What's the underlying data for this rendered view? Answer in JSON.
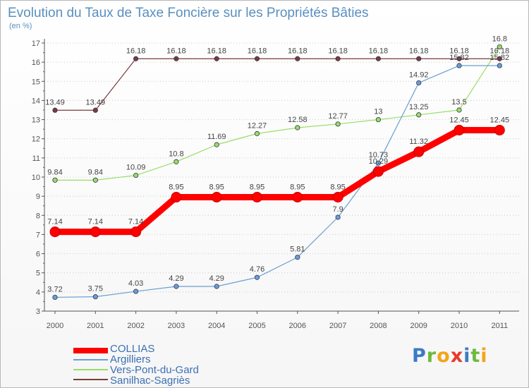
{
  "chart_data": {
    "type": "line",
    "title": "Evolution du Taux de Taxe Foncière sur les Propriétés Bâties",
    "subtitle": "(en %)",
    "x": [
      "2000",
      "2001",
      "2002",
      "2003",
      "2004",
      "2005",
      "2006",
      "2007",
      "2008",
      "2009",
      "2010",
      "2011"
    ],
    "ylim": [
      3,
      17
    ],
    "yticks": [
      3,
      4,
      5,
      6,
      7,
      8,
      9,
      10,
      11,
      12,
      13,
      14,
      15,
      16,
      17
    ],
    "grid": "horizontal dotted",
    "series": [
      {
        "name": "COLLIAS",
        "color": "#ff0000",
        "values": [
          7.14,
          7.14,
          7.14,
          8.95,
          8.95,
          8.95,
          8.95,
          8.95,
          10.29,
          11.32,
          12.45,
          12.45
        ],
        "labels": [
          "7.14",
          "7.14",
          "7.14",
          "8.95",
          "8.95",
          "8.95",
          "8.95",
          "8.95",
          "10.29",
          "11.32",
          "12.45",
          "12.45"
        ]
      },
      {
        "name": "Argilliers",
        "color": "#6a9fd0",
        "values": [
          3.72,
          3.75,
          4.03,
          4.29,
          4.29,
          4.76,
          5.81,
          7.9,
          10.73,
          14.92,
          15.82,
          15.82
        ],
        "labels": [
          "3.72",
          "3.75",
          "4.03",
          "4.29",
          "4.29",
          "4.76",
          "5.81",
          "7.9",
          "10.73",
          "14.92",
          "15.82",
          "15.82"
        ]
      },
      {
        "name": "Vers-Pont-du-Gard",
        "color": "#99dd66",
        "values": [
          9.84,
          9.84,
          10.09,
          10.8,
          11.69,
          12.27,
          12.58,
          12.77,
          13,
          13.25,
          13.5,
          16.8
        ],
        "labels": [
          "9.84",
          "9.84",
          "10.09",
          "10.8",
          "11.69",
          "12.27",
          "12.58",
          "12.77",
          "13",
          "13.25",
          "13.5",
          "16.8"
        ]
      },
      {
        "name": "Sanilhac-Sagriès",
        "color": "#7a3b3b",
        "values": [
          13.49,
          13.49,
          16.18,
          16.18,
          16.18,
          16.18,
          16.18,
          16.18,
          16.18,
          16.18,
          16.18,
          16.18
        ],
        "labels": [
          "13.49",
          "13.49",
          "16.18",
          "16.18",
          "16.18",
          "16.18",
          "16.18",
          "16.18",
          "16.18",
          "16.18",
          "16.18",
          "16.18"
        ]
      }
    ]
  },
  "logo": {
    "letters": [
      "P",
      "r",
      "o",
      "x",
      "i",
      "t",
      "i"
    ]
  },
  "colors": {
    "title": "#5a8fbf",
    "axis": "#555555",
    "grid": "#c8c8c8",
    "label": "#444444"
  }
}
